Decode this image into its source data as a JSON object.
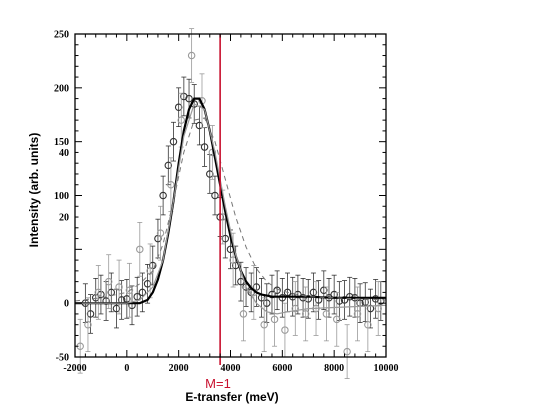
{
  "chart_data": {
    "type": "scatter",
    "title": "",
    "xlabel": "E-transfer (meV)",
    "ylabel": "Intensity  (arb. units)",
    "xlim": [
      -2000,
      10000
    ],
    "ylim": [
      -50,
      250
    ],
    "x_ticks": [
      "-2000",
      "0",
      "2000",
      "4000",
      "6000",
      "8000",
      "10000"
    ],
    "y_ticks_left": [
      "250",
      "200",
      "150",
      "100",
      "0",
      "-50"
    ],
    "y_ticks_inner": [
      "40",
      "20"
    ],
    "marker_line": {
      "x": 3600,
      "label": "M=1",
      "color": "#c8102e"
    },
    "grid": false,
    "legend": "none",
    "series": [
      {
        "marker": "open-circle",
        "color": "#333333",
        "x": [
          -1600,
          -1400,
          -1200,
          -1000,
          -800,
          -600,
          -400,
          -200,
          0,
          200,
          400,
          600,
          800,
          1000,
          1200,
          1400,
          1600,
          1800,
          2000,
          2200,
          2400,
          2600,
          2800,
          3000,
          3200,
          3400,
          3600,
          3800,
          4000,
          4200,
          4400,
          4600,
          4800,
          5000,
          5200,
          5400,
          5600,
          5800,
          6000,
          6200,
          6400,
          6600,
          6800,
          7000,
          7200,
          7400,
          7600,
          7800,
          8000,
          8200,
          8400,
          8600,
          8800,
          9000,
          9200,
          9400,
          9600,
          9800
        ],
        "y": [
          0,
          -10,
          5,
          8,
          2,
          10,
          -5,
          3,
          4,
          -2,
          6,
          10,
          18,
          35,
          60,
          100,
          128,
          150,
          182,
          192,
          190,
          185,
          165,
          145,
          120,
          100,
          80,
          60,
          50,
          35,
          20,
          15,
          10,
          15,
          5,
          0,
          8,
          12,
          5,
          10,
          6,
          8,
          5,
          4,
          10,
          3,
          12,
          5,
          8,
          2,
          3,
          6,
          5,
          0,
          1,
          -5,
          4,
          2
        ],
        "yerr": [
          18,
          18,
          18,
          18,
          18,
          18,
          18,
          18,
          18,
          18,
          18,
          18,
          18,
          18,
          18,
          18,
          18,
          18,
          18,
          18,
          18,
          18,
          18,
          18,
          18,
          18,
          18,
          18,
          18,
          18,
          18,
          18,
          18,
          18,
          18,
          18,
          18,
          18,
          18,
          18,
          18,
          18,
          18,
          18,
          18,
          18,
          18,
          18,
          18,
          18,
          18,
          18,
          18,
          18,
          18,
          18,
          18,
          18
        ]
      },
      {
        "marker": "open-circle",
        "color": "#9a9a9a",
        "x": [
          -1800,
          -1500,
          -1100,
          -700,
          -300,
          100,
          500,
          900,
          1300,
          1700,
          2100,
          2500,
          2900,
          3300,
          3700,
          4100,
          4500,
          4900,
          5300,
          5700,
          6100,
          6500,
          6900,
          7300,
          7700,
          8100,
          8500,
          8900,
          9300,
          9700
        ],
        "y": [
          -40,
          -20,
          10,
          20,
          15,
          12,
          50,
          30,
          65,
          110,
          170,
          230,
          188,
          140,
          80,
          40,
          -10,
          10,
          -20,
          -15,
          -25,
          -5,
          -10,
          -5,
          -10,
          -15,
          -45,
          -10,
          -20,
          -5
        ],
        "yerr": [
          25,
          25,
          25,
          25,
          25,
          25,
          25,
          25,
          25,
          25,
          25,
          25,
          25,
          25,
          25,
          25,
          25,
          25,
          25,
          25,
          25,
          25,
          25,
          25,
          25,
          25,
          25,
          25,
          25,
          25
        ]
      },
      {
        "marker": "none",
        "style": "solid",
        "color": "#000000",
        "width": 2.2,
        "x": [
          -2000,
          -1000,
          0,
          500,
          800,
          1000,
          1200,
          1400,
          1600,
          1800,
          2000,
          2200,
          2400,
          2600,
          2800,
          3000,
          3200,
          3400,
          3600,
          3800,
          4000,
          4200,
          4400,
          4600,
          4800,
          5000,
          5200,
          5400,
          5600,
          5800,
          6000,
          6500,
          7000,
          8000,
          9000,
          10000
        ],
        "y": [
          0,
          0,
          0,
          0,
          3,
          10,
          22,
          40,
          65,
          95,
          130,
          160,
          180,
          190,
          190,
          180,
          160,
          135,
          110,
          85,
          62,
          44,
          30,
          20,
          14,
          10,
          8,
          7,
          6,
          6,
          6,
          6,
          6,
          5,
          5,
          5
        ]
      },
      {
        "marker": "none",
        "style": "solid",
        "color": "#9a9a9a",
        "width": 1.2,
        "x": [
          -2000,
          -1000,
          0,
          500,
          1000,
          1400,
          1800,
          2200,
          2600,
          3000,
          3400,
          3800,
          4200,
          4600,
          5000,
          5400,
          5800,
          6200,
          7000,
          8000,
          9000,
          10000
        ],
        "y": [
          0,
          0,
          0,
          3,
          15,
          40,
          95,
          155,
          185,
          180,
          140,
          90,
          45,
          15,
          0,
          -8,
          -10,
          -8,
          -5,
          -4,
          -3,
          -2
        ]
      },
      {
        "marker": "none",
        "style": "dashed",
        "color": "#777777",
        "width": 1,
        "x": [
          -2000,
          -1000,
          0,
          500,
          1000,
          1400,
          1800,
          2200,
          2600,
          3000,
          3400,
          3800,
          4200,
          4600,
          5000,
          5400,
          5800,
          6200,
          6600,
          7000,
          8000,
          9000,
          10000
        ],
        "y": [
          2,
          5,
          10,
          18,
          30,
          55,
          95,
          140,
          170,
          172,
          150,
          115,
          80,
          52,
          32,
          20,
          13,
          10,
          8,
          6,
          5,
          4,
          3
        ]
      }
    ]
  }
}
